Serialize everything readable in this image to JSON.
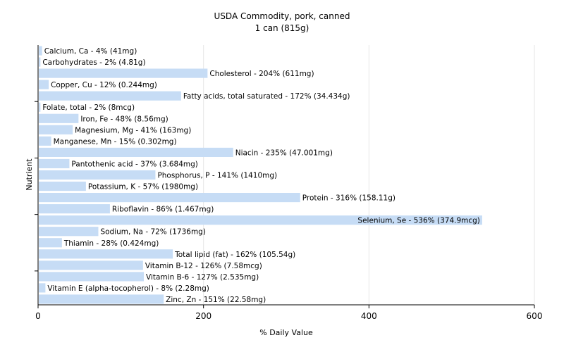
{
  "chart_data": {
    "type": "bar",
    "orientation": "horizontal",
    "title": "USDA Commodity, pork, canned",
    "subtitle": "1 can (815g)",
    "xlabel": "% Daily Value",
    "ylabel": "Nutrient",
    "xlim": [
      0,
      600
    ],
    "xticks": [
      0,
      200,
      400,
      600
    ],
    "grid": true,
    "bar_color": "#c6dcf5",
    "categories": [
      "Calcium, Ca",
      "Carbohydrates",
      "Cholesterol",
      "Copper, Cu",
      "Fatty acids, total saturated",
      "Folate, total",
      "Iron, Fe",
      "Magnesium, Mg",
      "Manganese, Mn",
      "Niacin",
      "Pantothenic acid",
      "Phosphorus, P",
      "Potassium, K",
      "Protein",
      "Riboflavin",
      "Selenium, Se",
      "Sodium, Na",
      "Thiamin",
      "Total lipid (fat)",
      "Vitamin B-12",
      "Vitamin B-6",
      "Vitamin E (alpha-tocopherol)",
      "Zinc, Zn"
    ],
    "values": [
      4,
      2,
      204,
      12,
      172,
      2,
      48,
      41,
      15,
      235,
      37,
      141,
      57,
      316,
      86,
      536,
      72,
      28,
      162,
      126,
      127,
      8,
      151
    ],
    "labels": [
      "Calcium, Ca - 4% (41mg)",
      "Carbohydrates - 2% (4.81g)",
      "Cholesterol - 204% (611mg)",
      "Copper, Cu - 12% (0.244mg)",
      "Fatty acids, total saturated - 172% (34.434g)",
      "Folate, total - 2% (8mcg)",
      "Iron, Fe - 48% (8.56mg)",
      "Magnesium, Mg - 41% (163mg)",
      "Manganese, Mn - 15% (0.302mg)",
      "Niacin - 235% (47.001mg)",
      "Pantothenic acid - 37% (3.684mg)",
      "Phosphorus, P - 141% (1410mg)",
      "Potassium, K - 57% (1980mg)",
      "Protein - 316% (158.11g)",
      "Riboflavin - 86% (1.467mg)",
      "Selenium, Se - 536% (374.9mcg)",
      "Sodium, Na - 72% (1736mg)",
      "Thiamin - 28% (0.424mg)",
      "Total lipid (fat) - 162% (105.54g)",
      "Vitamin B-12 - 126% (7.58mcg)",
      "Vitamin B-6 - 127% (2.535mg)",
      "Vitamin E (alpha-tocopherol) - 8% (2.28mg)",
      "Zinc, Zn - 151% (22.58mg)"
    ]
  }
}
